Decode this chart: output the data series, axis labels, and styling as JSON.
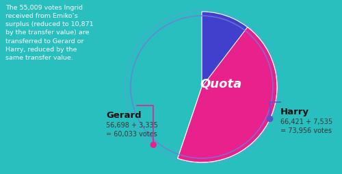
{
  "gerard_votes": 60033,
  "harry_votes": 73956,
  "gerard_color": "#e8218c",
  "harry_color": "#4040cc",
  "quota_label": "Quota",
  "quota_label_color": "#ffffff",
  "background_color": "#2abfbf",
  "gerard_label": "Gerard",
  "gerard_detail": "56,698 + 3,335\n= 60,033 votes",
  "harry_label": "Harry",
  "harry_detail": "66,421 + 7,535\n= 73,956 votes",
  "annotation_text": "The 55,009 votes Ingrid\nreceived from Emiko’s\nsurplus (reduced to 10,871\nby the transfer value) are\ntransferred to Gerard or\nHarry, reduced by the\nsame transfer value.",
  "annotation_color": "#ffffff",
  "gerard_connector_color": "#e8218c",
  "harry_connector_color": "#5555cc",
  "inner_border_color": "#7777dd",
  "label_dark_color": "#111111",
  "label_sub_color": "#333333"
}
